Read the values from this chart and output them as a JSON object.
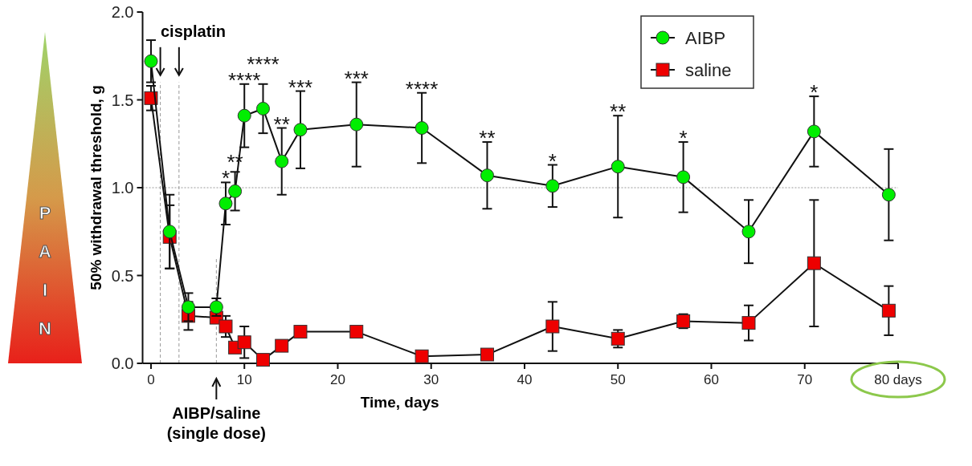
{
  "chart_data": {
    "type": "line",
    "xlabel": "Time, days",
    "ylabel": "50% withdrawal threshold, g",
    "xlim": [
      -0.9,
      80
    ],
    "xticks": [
      0,
      10,
      20,
      30,
      40,
      50,
      60,
      70,
      {
        "value": 80,
        "label": "80 days"
      }
    ],
    "ylim": [
      0,
      2
    ],
    "yticks": [
      {
        "value": 0,
        "label": "0.0"
      },
      {
        "value": 0.5,
        "label": "0.5"
      },
      {
        "value": 1,
        "label": "1.0"
      },
      {
        "value": 1.5,
        "label": "1.5"
      },
      {
        "value": 2,
        "label": "2.0"
      }
    ],
    "grid": false,
    "legend": "top right",
    "line_style": "solid",
    "series": [
      {
        "name": "AIBP",
        "color": "#00ee00",
        "marker": "circle",
        "x": [
          0,
          2,
          4,
          7,
          8,
          9,
          10,
          12,
          14,
          16,
          22,
          29,
          36,
          43,
          50,
          57,
          64,
          71,
          79
        ],
        "values": [
          1.72,
          0.75,
          0.32,
          0.32,
          0.91,
          0.98,
          1.41,
          1.45,
          1.15,
          1.33,
          1.36,
          1.34,
          1.07,
          1.01,
          1.12,
          1.06,
          0.75,
          1.32,
          0.96
        ],
        "errors": [
          0.12,
          0.21,
          0.08,
          0.05,
          0.12,
          0.11,
          0.18,
          0.14,
          0.19,
          0.22,
          0.24,
          0.2,
          0.19,
          0.12,
          0.29,
          0.2,
          0.18,
          0.2,
          0.26
        ],
        "value_labels": [
          null,
          null,
          null,
          null,
          "*",
          "**",
          "****",
          "****",
          "**",
          "***",
          "***",
          "****",
          "**",
          "*",
          "**",
          "*",
          null,
          "*",
          null
        ]
      },
      {
        "name": "saline",
        "color": "#ee0000",
        "marker": "square",
        "x": [
          0,
          2,
          4,
          7,
          8,
          9,
          10,
          12,
          14,
          16,
          22,
          29,
          36,
          43,
          50,
          57,
          64,
          71,
          79
        ],
        "values": [
          1.51,
          0.72,
          0.27,
          0.26,
          0.21,
          0.09,
          0.12,
          0.02,
          0.1,
          0.18,
          0.18,
          0.04,
          0.05,
          0.21,
          0.14,
          0.24,
          0.23,
          0.57,
          0.3
        ],
        "errors": [
          0.07,
          0.18,
          0.08,
          0.03,
          0.06,
          null,
          0.09,
          null,
          0.03,
          null,
          null,
          null,
          null,
          0.14,
          0.05,
          0.04,
          0.1,
          0.36,
          0.14
        ]
      }
    ],
    "ref_lines": [
      {
        "axis": "y",
        "value": 1,
        "color": "#999999",
        "line_style": "dotted"
      },
      {
        "axis": "x",
        "value": 1,
        "color": "#999999",
        "line_style": "dashed"
      },
      {
        "axis": "x",
        "value": 3,
        "color": "#999999",
        "line_style": "dashed"
      },
      {
        "axis": "x",
        "value": 7,
        "color": "#999999",
        "line_style": "dashed"
      }
    ],
    "annotations": [
      "cisplatin",
      "AIBP/saline (single dose)",
      "PAIN"
    ]
  }
}
